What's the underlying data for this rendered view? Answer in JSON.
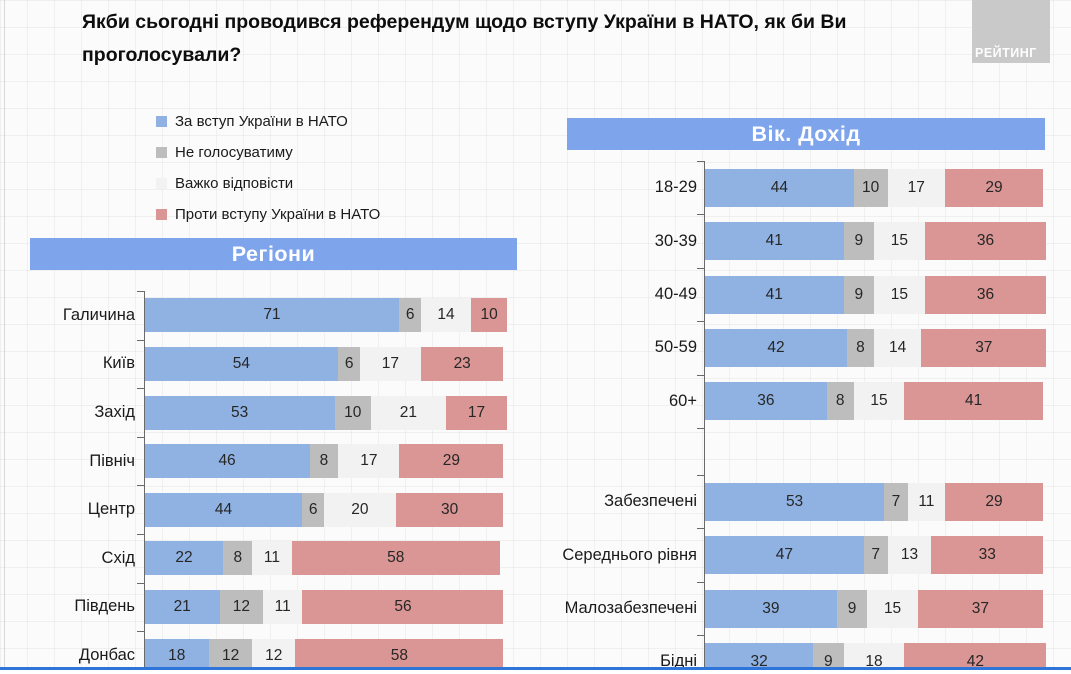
{
  "page": {
    "title": "Якби сьогодні проводився референдум щодо вступу України в НАТО, як би Ви проголосували?",
    "logo_text": "РЕЙТИНГ"
  },
  "colors": {
    "for_nato": "#8fb2e2",
    "wont_vote": "#bdbdbd",
    "hard_to_answer": "#f2f2f2",
    "against_nato": "#d99694",
    "banner": "#7ea4ec",
    "bottom_line": "#2e74d9",
    "logo_bg": "#c9c9c9"
  },
  "legend": [
    {
      "label": "За вступ України в НАТО",
      "color": "#8fb2e2"
    },
    {
      "label": "Не голосуватиму",
      "color": "#bdbdbd"
    },
    {
      "label": "Важко відповісти",
      "color": "#f2f2f2"
    },
    {
      "label": "Проти вступу України в НАТО",
      "color": "#d99694"
    }
  ],
  "chart_data": [
    {
      "type": "bar",
      "orientation": "horizontal",
      "stacked": true,
      "units": "percent",
      "xlim": [
        0,
        100
      ],
      "title": "Регіони",
      "series_names": [
        "За вступ України в НАТО",
        "Не голосуватиму",
        "Важко відповісти",
        "Проти вступу України в НАТО"
      ],
      "groups": [
        {
          "name": "regions",
          "rows": [
            {
              "label": "Галичина",
              "values": [
                71,
                6,
                14,
                10
              ]
            },
            {
              "label": "Київ",
              "values": [
                54,
                6,
                17,
                23
              ]
            },
            {
              "label": "Захід",
              "values": [
                53,
                10,
                21,
                17
              ]
            },
            {
              "label": "Північ",
              "values": [
                46,
                8,
                17,
                29
              ]
            },
            {
              "label": "Центр",
              "values": [
                44,
                6,
                20,
                30
              ]
            },
            {
              "label": "Схід",
              "values": [
                22,
                8,
                11,
                58
              ]
            },
            {
              "label": "Південь",
              "values": [
                21,
                12,
                11,
                56
              ]
            },
            {
              "label": "Донбас",
              "values": [
                18,
                12,
                12,
                58
              ]
            }
          ]
        }
      ]
    },
    {
      "type": "bar",
      "orientation": "horizontal",
      "stacked": true,
      "units": "percent",
      "xlim": [
        0,
        100
      ],
      "title": "Вік. Дохід",
      "series_names": [
        "За вступ України в НАТО",
        "Не голосуватиму",
        "Важко відповісти",
        "Проти вступу України в НАТО"
      ],
      "groups": [
        {
          "name": "age",
          "rows": [
            {
              "label": "18-29",
              "values": [
                44,
                10,
                17,
                29
              ]
            },
            {
              "label": "30-39",
              "values": [
                41,
                9,
                15,
                36
              ]
            },
            {
              "label": "40-49",
              "values": [
                41,
                9,
                15,
                36
              ]
            },
            {
              "label": "50-59",
              "values": [
                42,
                8,
                14,
                37
              ]
            },
            {
              "label": "60+",
              "values": [
                36,
                8,
                15,
                41
              ]
            }
          ]
        },
        {
          "name": "income",
          "rows": [
            {
              "label": "Забезпечені",
              "values": [
                53,
                7,
                11,
                29
              ]
            },
            {
              "label": "Середнього рівня",
              "values": [
                47,
                7,
                13,
                33
              ]
            },
            {
              "label": "Малозабезпечені",
              "values": [
                39,
                9,
                15,
                37
              ]
            },
            {
              "label": "Бідні",
              "values": [
                32,
                9,
                18,
                42
              ]
            }
          ]
        }
      ]
    }
  ]
}
